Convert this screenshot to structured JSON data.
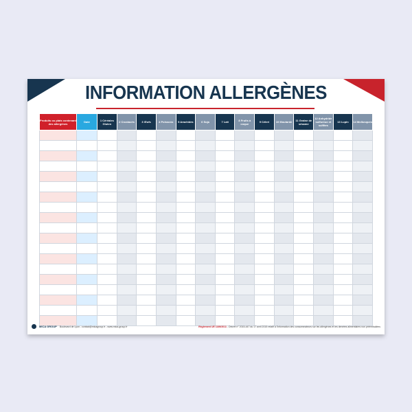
{
  "poster": {
    "title": "INFORMATION ALLERGÈNES",
    "colors": {
      "navy": "#17354f",
      "red": "#c8232c",
      "blue": "#29a8e0",
      "grey": "#8194aa"
    },
    "columns": [
      {
        "label": "Produits ou plats contenant des allergènes",
        "style": "c0"
      },
      {
        "label": "Date",
        "style": "c1"
      },
      {
        "label": "1 Céréales Gluten",
        "style": "dk"
      },
      {
        "label": "2 Crustacés",
        "style": "gr"
      },
      {
        "label": "3 Œufs",
        "style": "dk"
      },
      {
        "label": "4 Poissons",
        "style": "gr"
      },
      {
        "label": "5 Arachides",
        "style": "dk"
      },
      {
        "label": "6 Soja",
        "style": "gr"
      },
      {
        "label": "7 Lait",
        "style": "dk"
      },
      {
        "label": "8 Fruits à coque",
        "style": "gr"
      },
      {
        "label": "9 Céleri",
        "style": "dk"
      },
      {
        "label": "10 Moutarde",
        "style": "gr"
      },
      {
        "label": "11 Graine de sésame",
        "style": "dk"
      },
      {
        "label": "12 Anhydride sulfureux et sulfites",
        "style": "gr"
      },
      {
        "label": "13 Lupin",
        "style": "dk"
      },
      {
        "label": "14 Mollusques",
        "style": "gr"
      }
    ],
    "row_count": 19,
    "footer": {
      "brand": "MICA GROUP",
      "address": "Boulevard de Lyon - contact@micagroup.fr - www.mica-group.fr",
      "regulation_label": "Règlement UE 1169/2011",
      "regulation_text": "- Décret n° 2015-447 du 17 avril 2015 relatif à l'information des consommateurs sur les allergènes et les denrées alimentaires non préemballées"
    }
  }
}
